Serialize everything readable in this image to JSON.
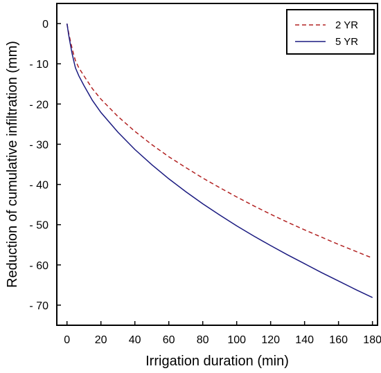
{
  "chart_data": {
    "type": "line",
    "xlabel": "Irrigation duration (min)",
    "ylabel": "Reduction of cumulative infiltration (mm)",
    "xlim": [
      -6,
      183
    ],
    "ylim": [
      -75,
      5
    ],
    "xticks": [
      0,
      20,
      40,
      60,
      80,
      100,
      120,
      140,
      160,
      180
    ],
    "yticks": [
      0,
      -10,
      -20,
      -30,
      -40,
      -50,
      -60,
      -70
    ],
    "ytick_labels": [
      "0",
      "- 10",
      "- 20",
      "- 30",
      "- 40",
      "- 50",
      "- 60",
      "- 70"
    ],
    "grid": false,
    "legend_position": "top-right",
    "x": [
      0,
      1,
      2,
      3,
      4,
      5,
      7,
      10,
      15,
      20,
      30,
      40,
      50,
      60,
      70,
      80,
      90,
      100,
      110,
      120,
      130,
      140,
      150,
      160,
      170,
      180
    ],
    "series": [
      {
        "name": "2 YR",
        "color": "#b22222",
        "dash": "dashed",
        "values": [
          0,
          -2.3,
          -4.3,
          -6.1,
          -7.8,
          -9.2,
          -11.0,
          -13.0,
          -16.2,
          -18.8,
          -23.1,
          -26.8,
          -30.1,
          -33.1,
          -35.8,
          -38.4,
          -40.8,
          -43.1,
          -45.3,
          -47.4,
          -49.4,
          -51.3,
          -53.1,
          -54.9,
          -56.6,
          -58.3
        ]
      },
      {
        "name": "5 YR",
        "color": "#1a1a80",
        "dash": "solid",
        "values": [
          0,
          -2.8,
          -5.2,
          -7.4,
          -9.3,
          -11.0,
          -13.0,
          -15.4,
          -19.1,
          -22.1,
          -27.0,
          -31.3,
          -35.1,
          -38.6,
          -41.8,
          -44.8,
          -47.6,
          -50.3,
          -52.8,
          -55.2,
          -57.5,
          -59.7,
          -61.9,
          -64.0,
          -66.1,
          -68.1
        ]
      }
    ]
  }
}
